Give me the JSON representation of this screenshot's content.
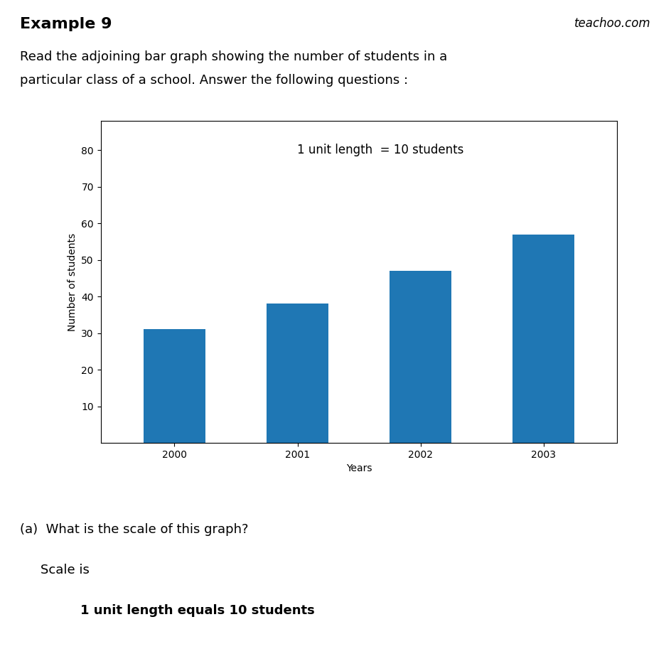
{
  "chart_data": {
    "type": "bar",
    "title": "Example 9",
    "annotations": [
      "teachoo.com",
      "Read the adjoining bar graph showing the number of students in a",
      "particular class of a school. Answer the following questions :",
      "1 unit length  = 10 students",
      "(a)  What is the scale of this graph?",
      "Scale is",
      "1 unit length equals 10 students"
    ],
    "categories": [
      "2000",
      "2001",
      "2002",
      "2003"
    ],
    "values": [
      31,
      38,
      47,
      57
    ],
    "xlabel": "Years",
    "ylabel": "Number of students",
    "ylim": [
      0,
      88
    ],
    "yticks": [
      10,
      20,
      30,
      40,
      50,
      60,
      70,
      80
    ]
  }
}
